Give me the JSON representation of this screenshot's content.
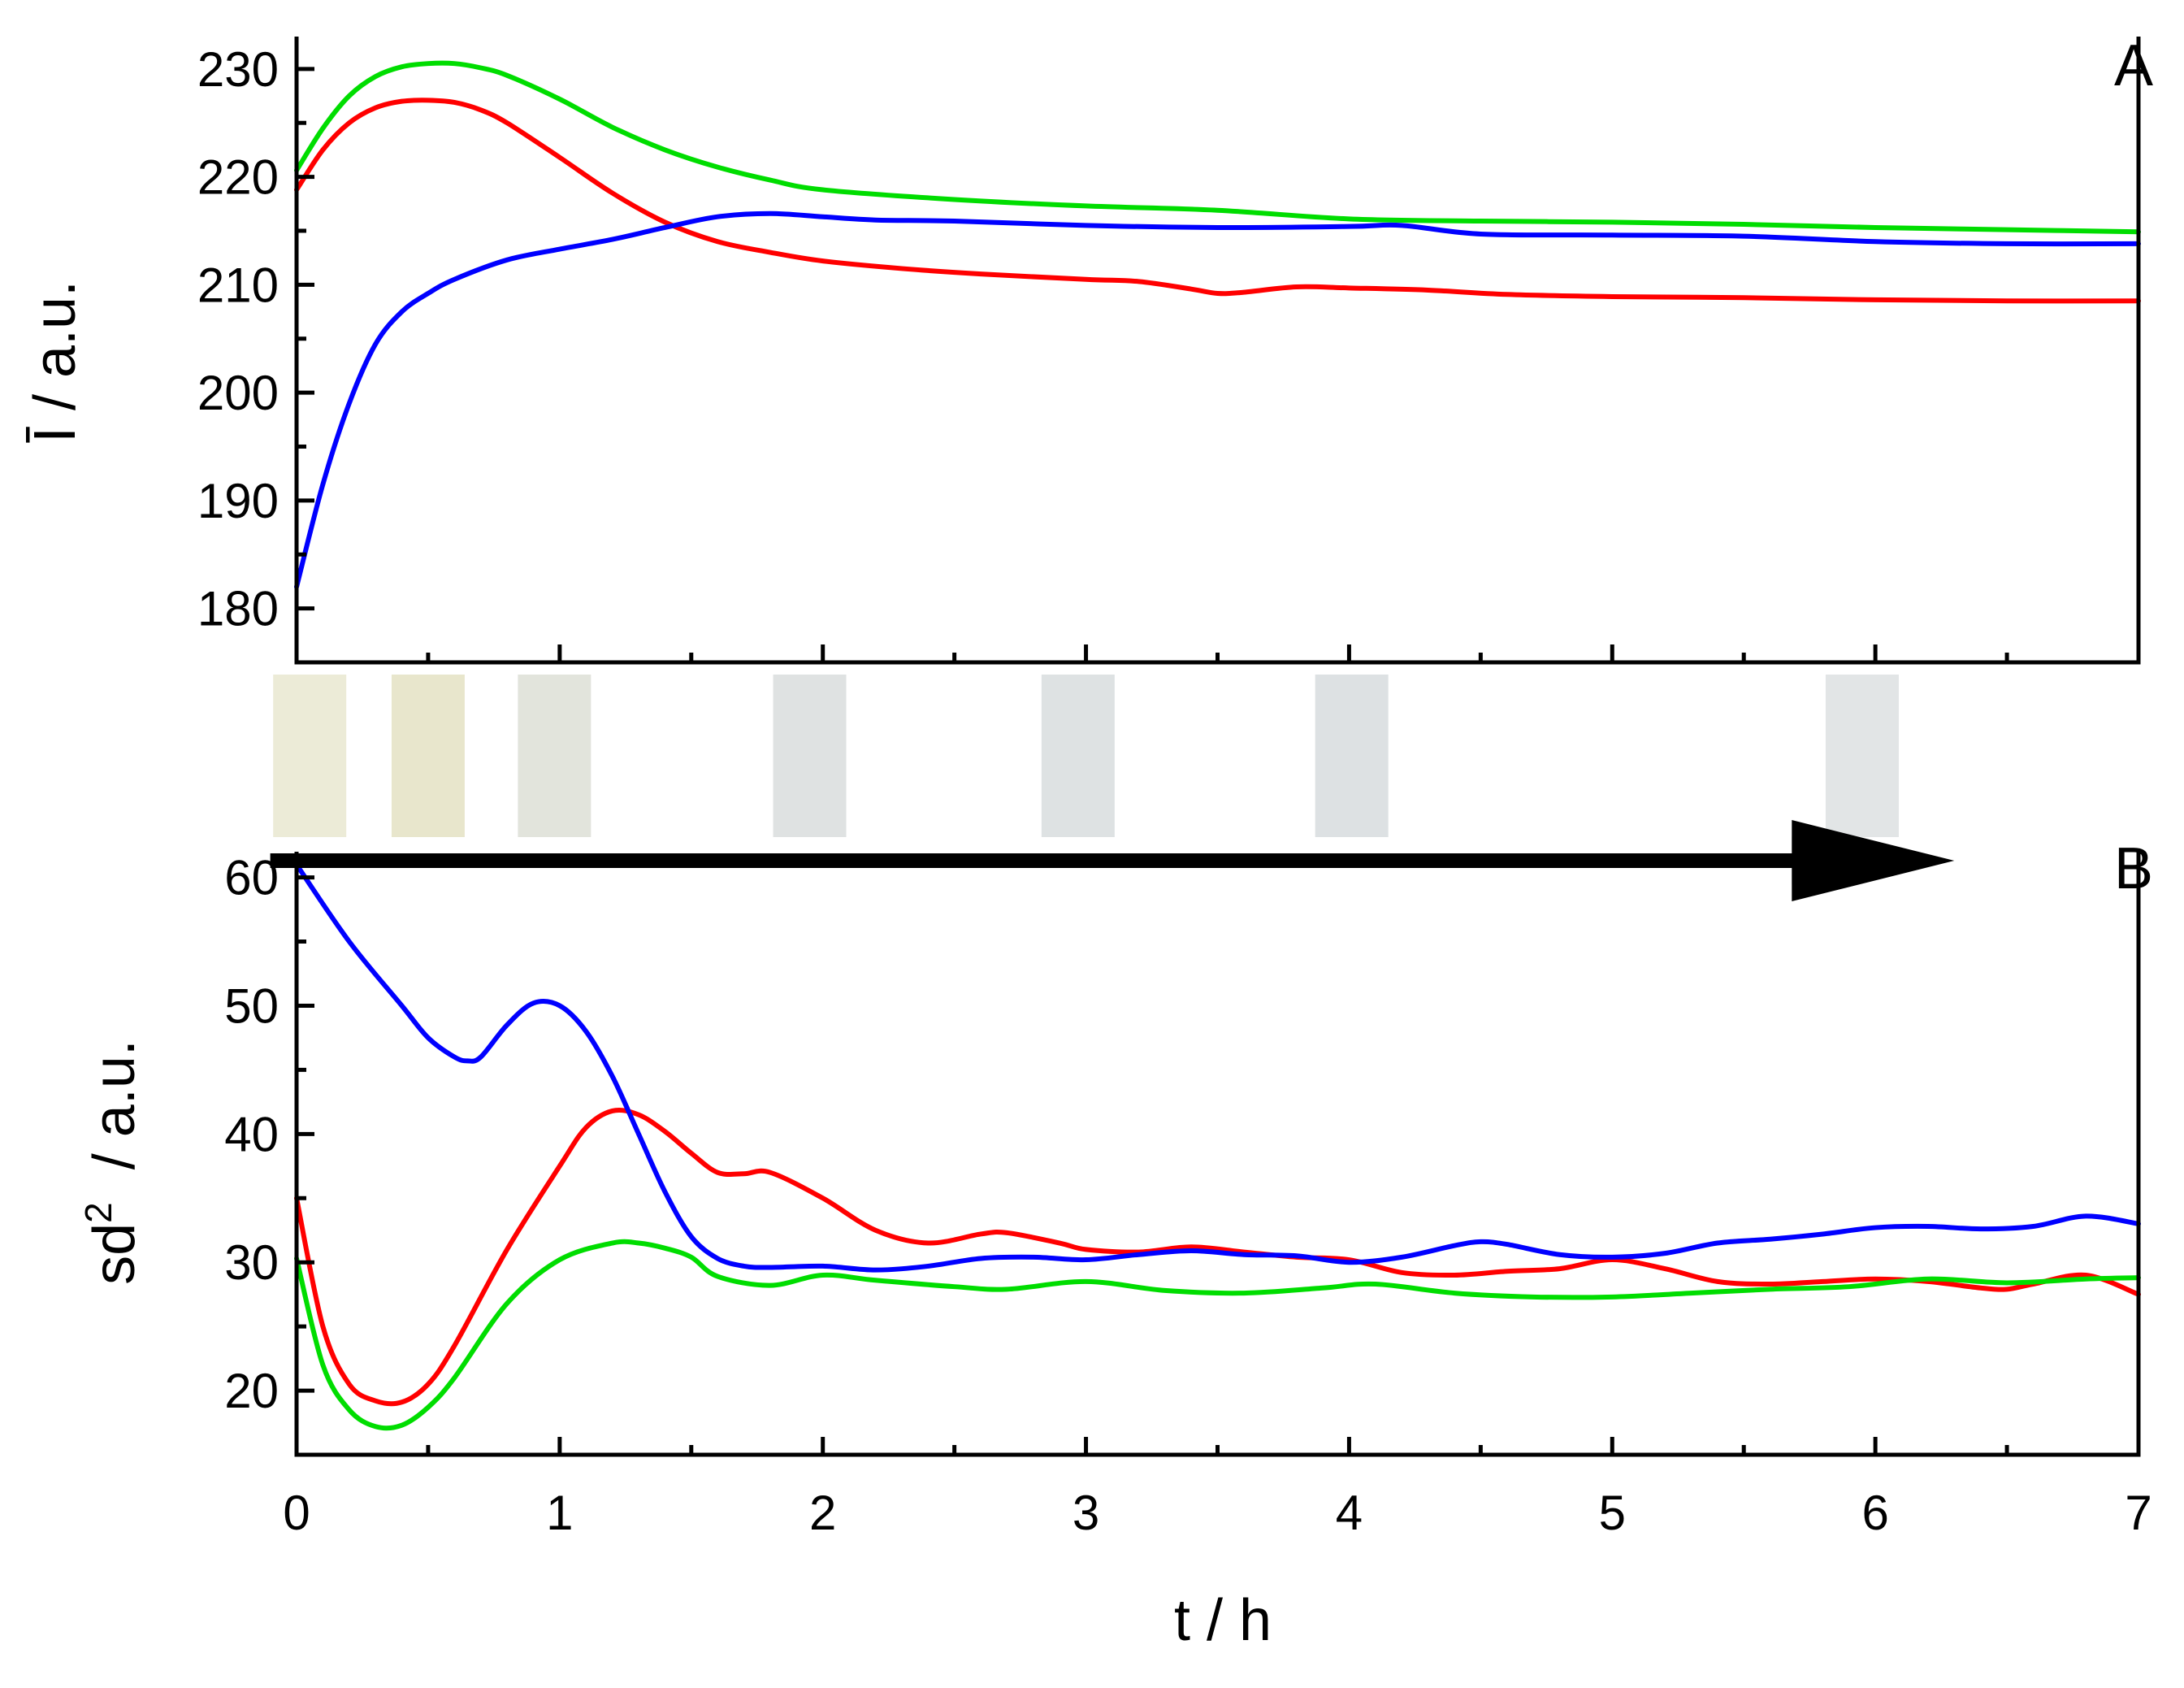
{
  "figure": {
    "xlabel": "t / h",
    "x_ticks": [
      "0",
      "1",
      "2",
      "3",
      "4",
      "5",
      "6",
      "7"
    ],
    "xlim": [
      0,
      7
    ]
  },
  "chart_data": [
    {
      "type": "line",
      "panel_label": "A",
      "title": "",
      "xlabel": "t / h",
      "ylabel": "Ī / a.u.",
      "ylim": [
        175,
        233
      ],
      "y_ticks": [
        "180",
        "190",
        "200",
        "210",
        "220",
        "230"
      ],
      "xlim": [
        0,
        7
      ],
      "grid": false,
      "series": [
        {
          "color": "#ff0000",
          "x": [
            0,
            0.1,
            0.2,
            0.3,
            0.4,
            0.5,
            0.6,
            0.7,
            0.8,
            1.0,
            1.2,
            1.4,
            1.6,
            1.8,
            2.0,
            2.3,
            2.6,
            3.0,
            3.2,
            3.4,
            3.5,
            3.6,
            3.8,
            4.0,
            4.3,
            4.6,
            5.0,
            5.5,
            6.0,
            6.5,
            7.0
          ],
          "y": [
            218.8,
            222.5,
            225.0,
            226.4,
            227.0,
            227.1,
            226.9,
            226.2,
            225.0,
            221.8,
            218.5,
            215.8,
            214.0,
            213.0,
            212.2,
            211.5,
            211.0,
            210.5,
            210.3,
            209.6,
            209.2,
            209.3,
            209.8,
            209.7,
            209.5,
            209.1,
            208.9,
            208.8,
            208.6,
            208.5,
            208.5
          ]
        },
        {
          "color": "#00dd00",
          "x": [
            0,
            0.1,
            0.2,
            0.3,
            0.4,
            0.5,
            0.6,
            0.7,
            0.8,
            1.0,
            1.2,
            1.4,
            1.6,
            1.8,
            2.0,
            2.5,
            3.0,
            3.5,
            4.0,
            4.5,
            5.0,
            5.5,
            6.0,
            6.5,
            7.0
          ],
          "y": [
            220.6,
            224.5,
            227.5,
            229.3,
            230.2,
            230.5,
            230.5,
            230.1,
            229.4,
            227.2,
            224.6,
            222.5,
            220.9,
            219.7,
            218.8,
            217.9,
            217.3,
            216.9,
            216.1,
            215.9,
            215.8,
            215.6,
            215.3,
            215.1,
            214.9
          ]
        },
        {
          "color": "#0000ff",
          "x": [
            0,
            0.1,
            0.2,
            0.3,
            0.4,
            0.5,
            0.6,
            0.8,
            1.0,
            1.2,
            1.4,
            1.6,
            1.8,
            2.0,
            2.2,
            2.5,
            3.0,
            3.5,
            4.0,
            4.2,
            4.5,
            5.0,
            5.5,
            6.0,
            6.5,
            7.0
          ],
          "y": [
            182.0,
            191.5,
            199.0,
            204.5,
            207.5,
            209.2,
            210.5,
            212.3,
            213.3,
            214.2,
            215.3,
            216.3,
            216.6,
            216.3,
            216.0,
            215.9,
            215.5,
            215.3,
            215.4,
            215.5,
            214.7,
            214.6,
            214.5,
            214.0,
            213.8,
            213.8
          ]
        }
      ]
    },
    {
      "type": "line",
      "panel_label": "B",
      "title": "",
      "xlabel": "t / h",
      "ylabel_main": "sd",
      "ylabel_sup": "2",
      "ylabel_rest": "/ a.u.",
      "ylim": [
        15,
        62
      ],
      "y_ticks": [
        "20",
        "30",
        "40",
        "50",
        "60"
      ],
      "xlim": [
        0,
        7
      ],
      "grid": false,
      "series": [
        {
          "color": "#ff0000",
          "x": [
            0,
            0.1,
            0.2,
            0.3,
            0.4,
            0.5,
            0.6,
            0.8,
            1.0,
            1.1,
            1.2,
            1.3,
            1.4,
            1.5,
            1.6,
            1.7,
            1.8,
            2.0,
            2.2,
            2.4,
            2.6,
            2.7,
            2.9,
            3.0,
            3.2,
            3.4,
            3.6,
            3.8,
            4.0,
            4.2,
            4.4,
            4.6,
            4.8,
            5.0,
            5.2,
            5.4,
            5.6,
            5.8,
            6.0,
            6.2,
            6.4,
            6.5,
            6.6,
            6.8,
            7.0
          ],
          "y": [
            35.0,
            25.0,
            20.5,
            19.2,
            19.1,
            20.5,
            23.5,
            31.0,
            37.5,
            40.5,
            41.8,
            41.5,
            40.2,
            38.5,
            37.0,
            36.9,
            37.0,
            35.0,
            32.5,
            31.5,
            32.2,
            32.3,
            31.5,
            31.0,
            30.8,
            31.2,
            30.8,
            30.4,
            30.2,
            29.2,
            29.0,
            29.3,
            29.5,
            30.2,
            29.5,
            28.5,
            28.3,
            28.5,
            28.7,
            28.5,
            28.0,
            27.9,
            28.3,
            29.0,
            27.5
          ]
        },
        {
          "color": "#00dd00",
          "x": [
            0,
            0.1,
            0.2,
            0.3,
            0.4,
            0.5,
            0.6,
            0.8,
            1.0,
            1.2,
            1.3,
            1.4,
            1.5,
            1.6,
            1.8,
            2.0,
            2.2,
            2.5,
            2.7,
            3.0,
            3.3,
            3.6,
            3.9,
            4.1,
            4.4,
            4.7,
            5.0,
            5.3,
            5.6,
            5.9,
            6.2,
            6.5,
            6.8,
            7.0
          ],
          "y": [
            30.3,
            22.0,
            18.5,
            17.2,
            17.3,
            18.7,
            21.0,
            26.8,
            30.2,
            31.5,
            31.5,
            31.1,
            30.4,
            28.9,
            28.2,
            29.0,
            28.6,
            28.1,
            27.9,
            28.5,
            27.8,
            27.6,
            28.0,
            28.3,
            27.6,
            27.3,
            27.3,
            27.6,
            27.9,
            28.1,
            28.7,
            28.4,
            28.7,
            28.8
          ]
        },
        {
          "color": "#0000ff",
          "x": [
            0,
            0.2,
            0.4,
            0.5,
            0.6,
            0.65,
            0.7,
            0.8,
            0.9,
            1.0,
            1.1,
            1.2,
            1.3,
            1.4,
            1.5,
            1.6,
            1.7,
            1.8,
            2.0,
            2.2,
            2.4,
            2.6,
            2.8,
            3.0,
            3.2,
            3.4,
            3.6,
            3.8,
            4.0,
            4.2,
            4.4,
            4.5,
            4.6,
            4.8,
            5.0,
            5.2,
            5.4,
            5.6,
            5.8,
            6.0,
            6.2,
            6.4,
            6.6,
            6.8,
            7.0
          ],
          "y": [
            61.0,
            55.0,
            50.0,
            47.5,
            46.0,
            45.7,
            46.0,
            48.5,
            50.2,
            50.0,
            48.0,
            44.5,
            40.0,
            35.5,
            32.0,
            30.3,
            29.7,
            29.6,
            29.7,
            29.4,
            29.7,
            30.3,
            30.4,
            30.2,
            30.6,
            30.9,
            30.6,
            30.5,
            30.0,
            30.4,
            31.3,
            31.6,
            31.4,
            30.6,
            30.4,
            30.7,
            31.5,
            31.8,
            32.2,
            32.7,
            32.8,
            32.6,
            32.8,
            33.6,
            33.0
          ]
        }
      ]
    }
  ],
  "thumbnails": {
    "times": [
      0.05,
      0.5,
      0.98,
      1.95,
      2.97,
      4.01,
      5.95
    ],
    "colors": [
      "#ecebd7",
      "#e8e6cc",
      "#e2e4dc",
      "#dfe2e2",
      "#dee2e3",
      "#dde1e3",
      "#e2e5e6"
    ]
  },
  "arrow": {
    "from_t": -0.1,
    "to_t": 6.3,
    "level_sd2": 61.3
  }
}
